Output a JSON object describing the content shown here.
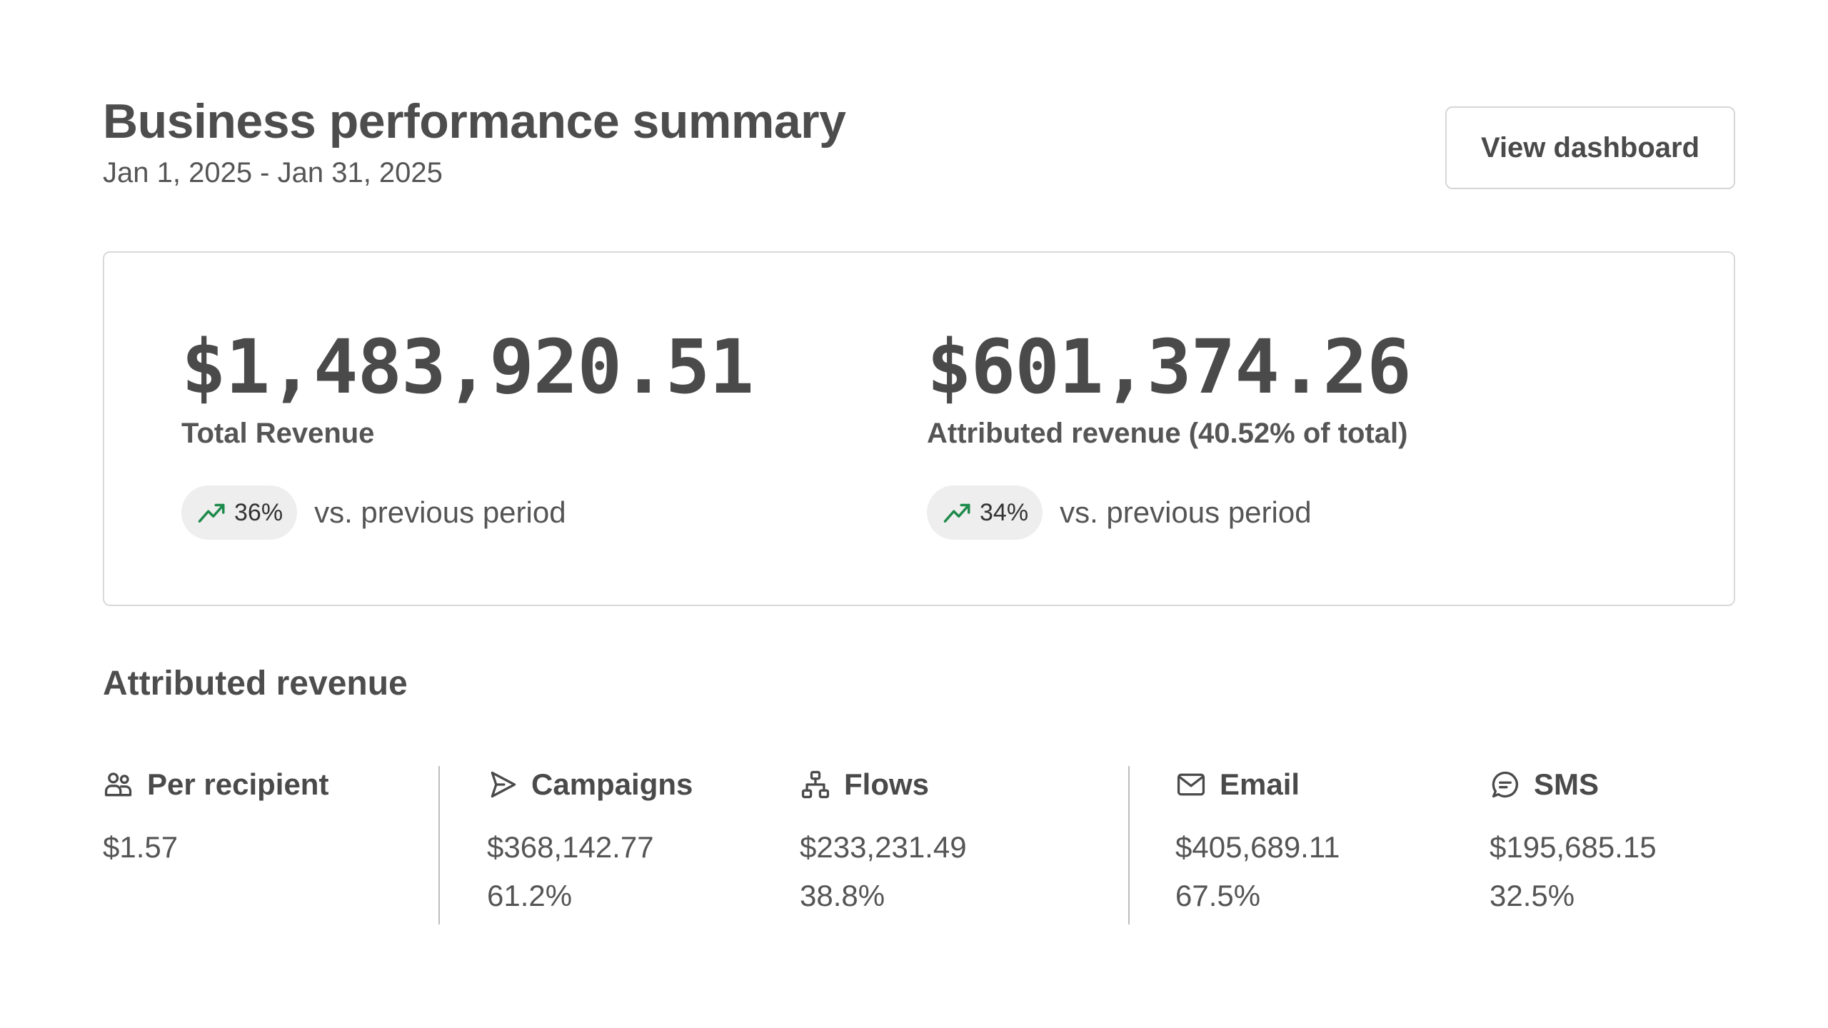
{
  "header": {
    "title": "Business performance summary",
    "date_range": "Jan 1, 2025 - Jan 31, 2025",
    "view_button_label": "View dashboard"
  },
  "summary": {
    "total": {
      "value": "$1,483,920.51",
      "label": "Total Revenue",
      "trend": "36%",
      "comparison": "vs. previous period"
    },
    "attributed": {
      "value": "$601,374.26",
      "label": "Attributed revenue (40.52% of total)",
      "trend": "34%",
      "comparison": "vs. previous period"
    },
    "trend_color": "#1e8a4c"
  },
  "attributed_section": {
    "title": "Attributed revenue",
    "stats": [
      {
        "label": "Per recipient",
        "icon": "users-icon",
        "value": "$1.57"
      },
      {
        "label": "Campaigns",
        "icon": "send-icon",
        "value": "$368,142.77",
        "percent": "61.2%"
      },
      {
        "label": "Flows",
        "icon": "flow-icon",
        "value": "$233,231.49",
        "percent": "38.8%"
      },
      {
        "label": "Email",
        "icon": "mail-icon",
        "value": "$405,689.11",
        "percent": "67.5%"
      },
      {
        "label": "SMS",
        "icon": "chat-icon",
        "value": "$195,685.15",
        "percent": "32.5%"
      }
    ]
  }
}
